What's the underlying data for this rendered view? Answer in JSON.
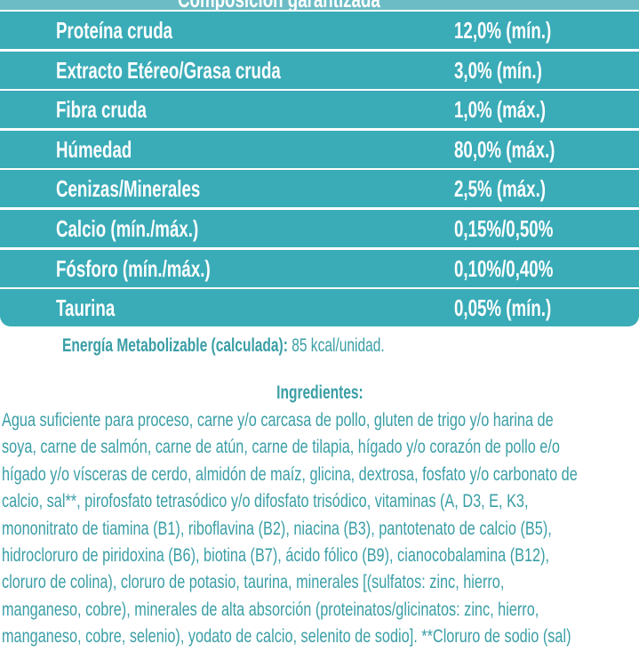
{
  "header_partial": "Composición garantizada",
  "nutrients": [
    {
      "label": "Proteína cruda",
      "value": "12,0% (mín.)"
    },
    {
      "label": "Extracto Etéreo/Grasa cruda",
      "value": "3,0% (mín.)"
    },
    {
      "label": "Fibra cruda",
      "value": "1,0% (máx.)"
    },
    {
      "label": "Húmedad",
      "value": "80,0% (máx.)"
    },
    {
      "label": "Cenizas/Minerales",
      "value": "2,5% (máx.)"
    },
    {
      "label": "Calcio (mín./máx.)",
      "value": "0,15%/0,50%"
    },
    {
      "label": "Fósforo (mín./máx.)",
      "value": "0,10%/0,40%"
    },
    {
      "label": "Taurina",
      "value": "0,05% (mín.)"
    }
  ],
  "energy": {
    "label": "Energía Metabolizable (calculada):",
    "value": " 85 kcal/unidad."
  },
  "ingredients": {
    "title": "Ingredientes:",
    "lines": [
      "Agua suficiente para proceso, carne y/o carcasa de pollo, gluten de trigo y/o harina de",
      "soya, carne de salmón, carne de atún, carne de tilapia, hígado y/o corazón de pollo e/o",
      "hígado y/o vísceras de cerdo, almidón de maíz, glicina, dextrosa, fosfato y/o carbonato de",
      "calcio, sal**, pirofosfato tetrasódico y/o difosfato trisódico, vitaminas (A, D3, E, K3,",
      "mononitrato de tiamina (B1), riboflavina (B2), niacina (B3), pantotenato de calcio (B5),",
      "hidrocloruro de piridoxina (B6), biotina (B7), ácido fólico (B9), cianocobalamina (B12),",
      "cloruro de colina), cloruro de potasio, taurina, minerales [(sulfatos: zinc, hierro,",
      "manganeso, cobre), minerales de alta absorción (proteinatos/glicinatos: zinc, hierro,",
      "manganeso, cobre, selenio), yodato de calcio, selenito de sodio]. **Cloruro de sodio (sal)"
    ]
  }
}
